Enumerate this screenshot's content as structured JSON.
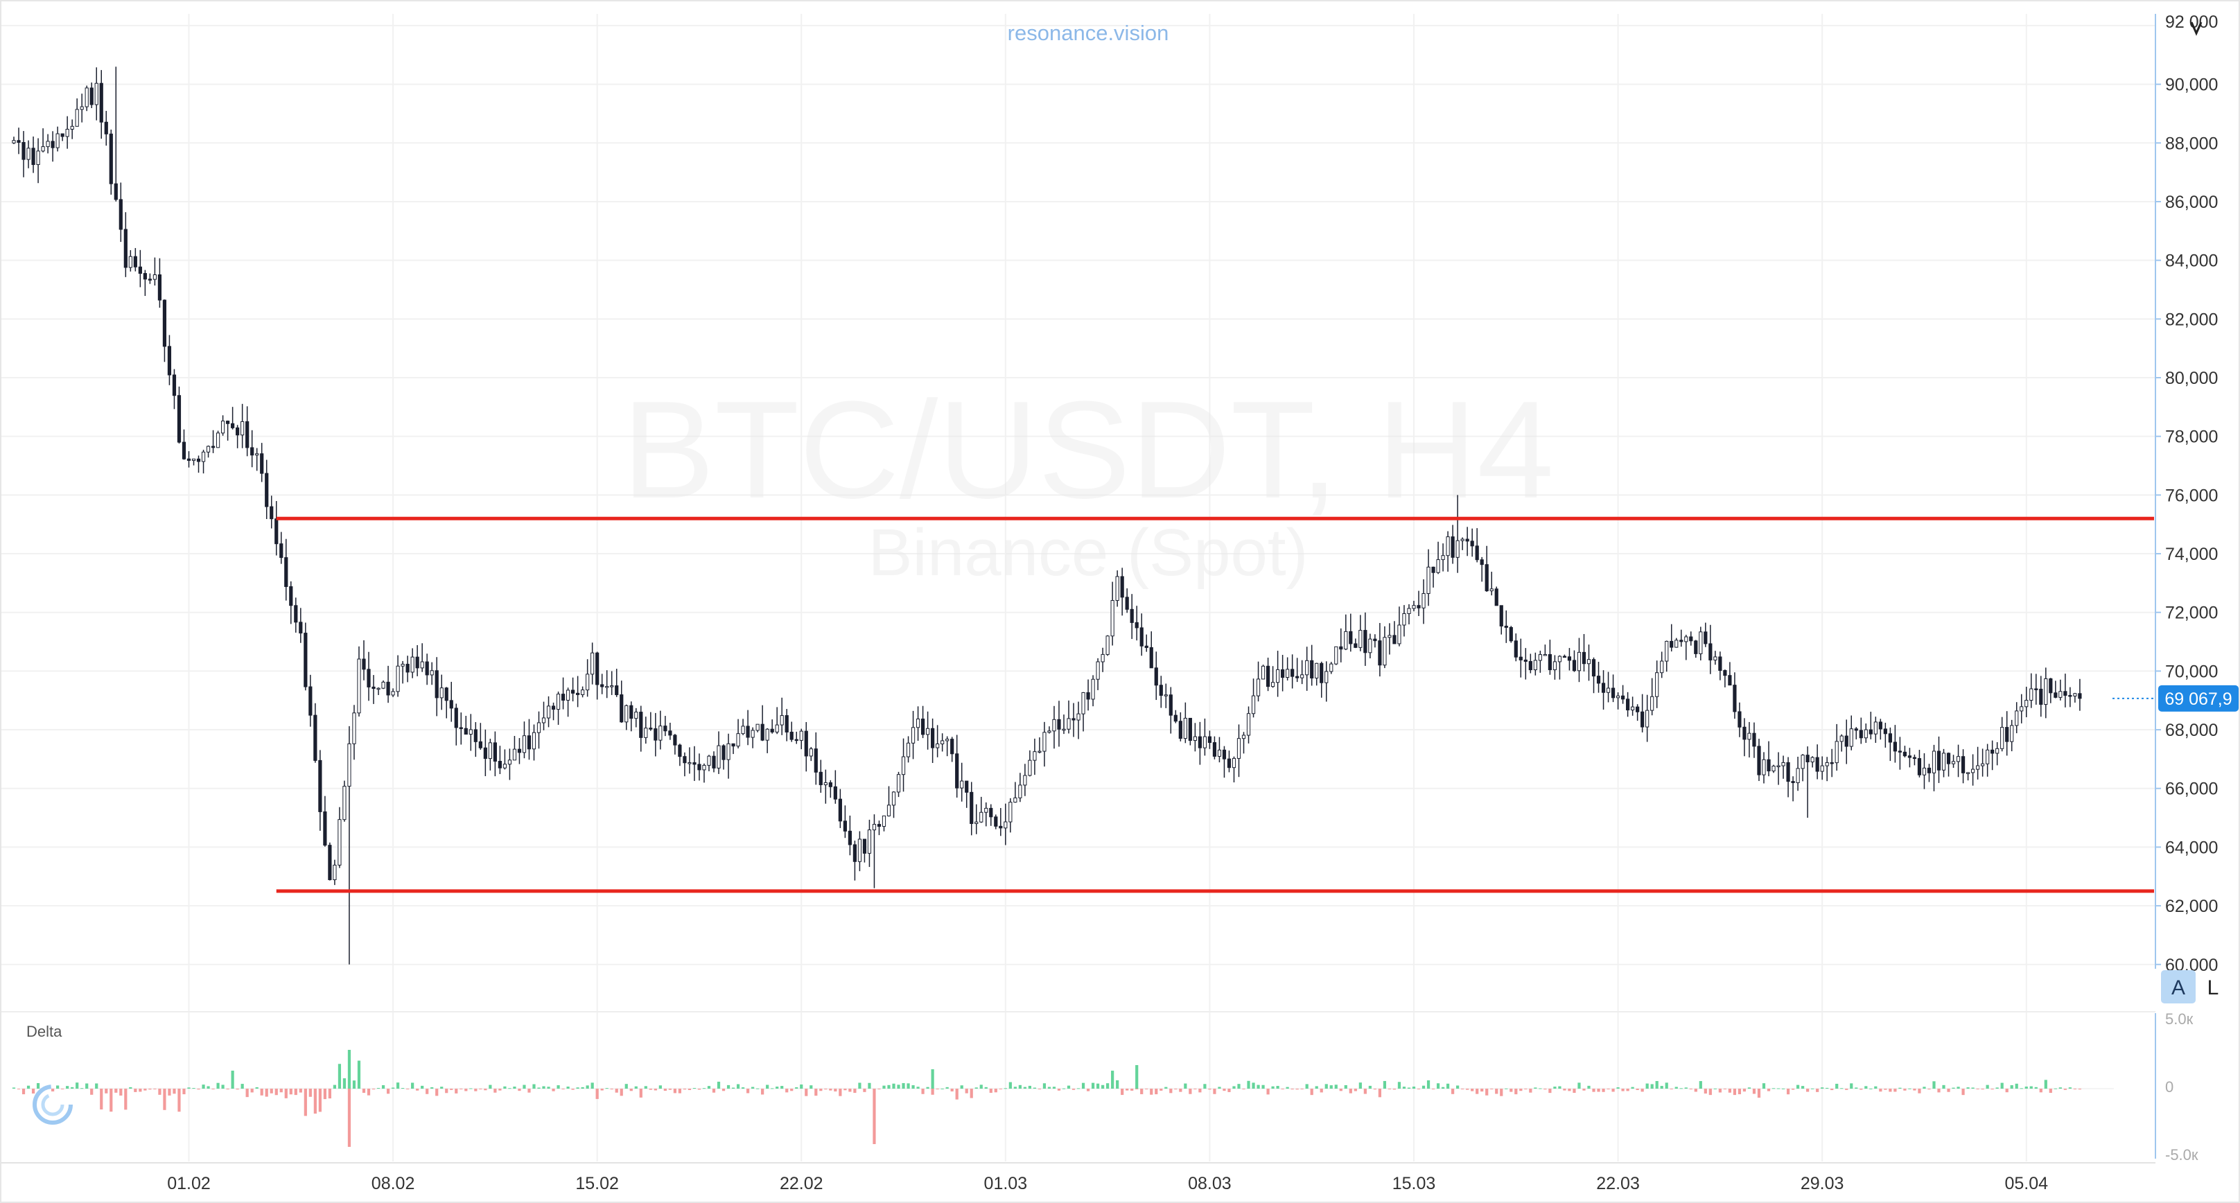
{
  "watermark": {
    "brand": "resonance.vision",
    "symbol": "BTC/USDT, H4",
    "exchange": "Binance (Spot)"
  },
  "price_axis": {
    "top_label": "92 000",
    "mode_icon": "chevron-down-icon"
  },
  "current_price": {
    "label": "69 067,9",
    "value": 69067.9,
    "color": "#1e88e5"
  },
  "scale_buttons": {
    "auto": "A",
    "log": "L"
  },
  "delta_pane": {
    "title": "Delta",
    "ticks": [
      "5.0к",
      "0",
      "-5.0к"
    ]
  },
  "colors": {
    "candle": "#1a1f2e",
    "candle_up": "#c9ccd3",
    "level_line": "#e8261e",
    "delta_up": "#64d49a",
    "delta_down": "#f39a9a",
    "axis_line": "#9fc6ee"
  },
  "chart_data": [
    {
      "type": "candlestick",
      "title": "BTC/USDT, H4",
      "subtitle": "Binance (Spot)",
      "xlabel": "",
      "ylabel": "",
      "x_ticks": [
        "01.02",
        "08.02",
        "15.02",
        "22.02",
        "01.03",
        "08.03",
        "15.03",
        "22.03",
        "29.03",
        "05.04"
      ],
      "x_range": [
        "2026-01-26",
        "2026-04-08"
      ],
      "y_ticks": [
        60000,
        62000,
        64000,
        66000,
        68000,
        70000,
        72000,
        74000,
        76000,
        78000,
        80000,
        82000,
        84000,
        86000,
        88000,
        90000,
        92000
      ],
      "y_tick_labels": [
        "60,000",
        "62,000",
        "64,000",
        "66,000",
        "68,000",
        "70,000",
        "72,000",
        "74,000",
        "76,000",
        "78,000",
        "80,000",
        "82,000",
        "84,000",
        "86,000",
        "88,000",
        "90,000",
        "92,000"
      ],
      "ylim": [
        59900,
        92400
      ],
      "grid": true,
      "levels": [
        {
          "name": "resistance",
          "value": 75200
        },
        {
          "name": "support",
          "value": 62500
        }
      ],
      "close_path": [
        [
          "2026-01-26",
          88000
        ],
        [
          "2026-01-27",
          87500
        ],
        [
          "2026-01-28",
          88400
        ],
        [
          "2026-01-29",
          90000
        ],
        [
          "2026-01-30",
          84000
        ],
        [
          "2026-01-31",
          83500
        ],
        [
          "2026-02-01",
          77000
        ],
        [
          "2026-02-02",
          78000
        ],
        [
          "2026-02-03",
          78500
        ],
        [
          "2026-02-04",
          75500
        ],
        [
          "2026-02-05",
          71000
        ],
        [
          "2026-02-06",
          62500
        ],
        [
          "2026-02-07",
          70000
        ],
        [
          "2026-02-08",
          69500
        ],
        [
          "2026-02-09",
          70500
        ],
        [
          "2026-02-10",
          69000
        ],
        [
          "2026-02-11",
          67500
        ],
        [
          "2026-02-12",
          66800
        ],
        [
          "2026-02-13",
          67800
        ],
        [
          "2026-02-14",
          69000
        ],
        [
          "2026-02-15",
          70200
        ],
        [
          "2026-02-16",
          68500
        ],
        [
          "2026-02-17",
          68000
        ],
        [
          "2026-02-18",
          67200
        ],
        [
          "2026-02-19",
          67000
        ],
        [
          "2026-02-20",
          67800
        ],
        [
          "2026-02-21",
          68100
        ],
        [
          "2026-02-22",
          68000
        ],
        [
          "2026-02-23",
          66000
        ],
        [
          "2026-02-24",
          63800
        ],
        [
          "2026-02-25",
          64700
        ],
        [
          "2026-02-26",
          68000
        ],
        [
          "2026-02-27",
          67700
        ],
        [
          "2026-02-28",
          65000
        ],
        [
          "2026-03-01",
          64800
        ],
        [
          "2026-03-02",
          67000
        ],
        [
          "2026-03-03",
          68200
        ],
        [
          "2026-03-04",
          69000
        ],
        [
          "2026-03-05",
          72800
        ],
        [
          "2026-03-06",
          70500
        ],
        [
          "2026-03-07",
          68200
        ],
        [
          "2026-03-08",
          67600
        ],
        [
          "2026-03-09",
          66800
        ],
        [
          "2026-03-10",
          69800
        ],
        [
          "2026-03-11",
          70100
        ],
        [
          "2026-03-12",
          70000
        ],
        [
          "2026-03-13",
          71300
        ],
        [
          "2026-03-14",
          70600
        ],
        [
          "2026-03-15",
          71700
        ],
        [
          "2026-03-16",
          74200
        ],
        [
          "2026-03-17",
          74300
        ],
        [
          "2026-03-18",
          72100
        ],
        [
          "2026-03-19",
          70200
        ],
        [
          "2026-03-20",
          70300
        ],
        [
          "2026-03-21",
          70200
        ],
        [
          "2026-03-22",
          69000
        ],
        [
          "2026-03-23",
          68400
        ],
        [
          "2026-03-24",
          71000
        ],
        [
          "2026-03-25",
          70900
        ],
        [
          "2026-03-26",
          69200
        ],
        [
          "2026-03-27",
          66600
        ],
        [
          "2026-03-28",
          66500
        ],
        [
          "2026-03-29",
          66900
        ],
        [
          "2026-03-30",
          67600
        ],
        [
          "2026-03-31",
          68200
        ],
        [
          "2026-04-01",
          66800
        ],
        [
          "2026-04-02",
          66900
        ],
        [
          "2026-04-03",
          66900
        ],
        [
          "2026-04-04",
          67100
        ],
        [
          "2026-04-05",
          68800
        ],
        [
          "2026-04-06",
          69500
        ],
        [
          "2026-04-07",
          69067.9
        ]
      ],
      "extremes": [
        {
          "date": "2026-01-29",
          "high": 90600
        },
        {
          "date": "2026-02-06",
          "low": 60000
        },
        {
          "date": "2026-02-24",
          "low": 62600
        },
        {
          "date": "2026-03-16",
          "high": 76000
        },
        {
          "date": "2026-03-28",
          "low": 65000
        }
      ]
    },
    {
      "type": "bar",
      "title": "Delta",
      "ylim": [
        -5000,
        5000
      ],
      "y_ticks": [
        5000,
        0,
        -5000
      ],
      "y_tick_labels": [
        "5.0к",
        "0",
        "-5.0к"
      ],
      "notable": [
        {
          "date": "2026-02-06",
          "value": 2800
        },
        {
          "date": "2026-02-06",
          "value": -4200
        },
        {
          "date": "2026-02-24",
          "value": -4000
        },
        {
          "date": "2026-02-02",
          "value": 1300
        },
        {
          "date": "2026-02-26",
          "value": 1400
        },
        {
          "date": "2026-03-05",
          "value": 1700
        }
      ]
    }
  ]
}
